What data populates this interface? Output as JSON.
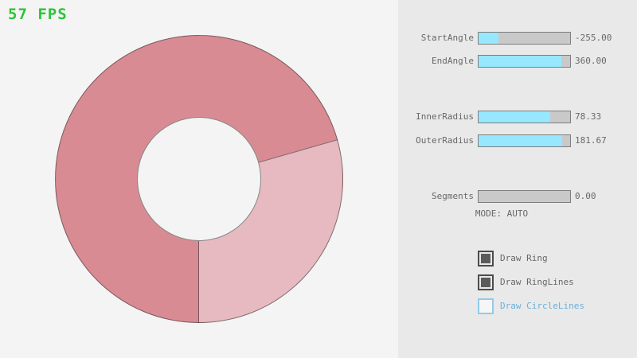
{
  "fps_label": "57 FPS",
  "ring": {
    "color_overlap": "#d98b93",
    "color_single": "#e6bac0",
    "outline_color": "rgba(45,45,45,0.55)",
    "light_sector_conic": [
      74,
      180
    ]
  },
  "panel": {
    "sliders": [
      {
        "label": "StartAngle",
        "value": "-255.00",
        "fill_percent": 22
      },
      {
        "label": "EndAngle",
        "value": "360.00",
        "fill_percent": 90
      },
      {
        "label": "InnerRadius",
        "value": "78.33",
        "fill_percent": 78
      },
      {
        "label": "OuterRadius",
        "value": "181.67",
        "fill_percent": 91
      },
      {
        "label": "Segments",
        "value": "0.00",
        "fill_percent": 0
      }
    ],
    "mode_label": "MODE: AUTO",
    "checkboxes": [
      {
        "label": "Draw Ring",
        "checked": true
      },
      {
        "label": "Draw RingLines",
        "checked": true
      },
      {
        "label": "Draw CircleLines",
        "checked": false
      }
    ]
  }
}
